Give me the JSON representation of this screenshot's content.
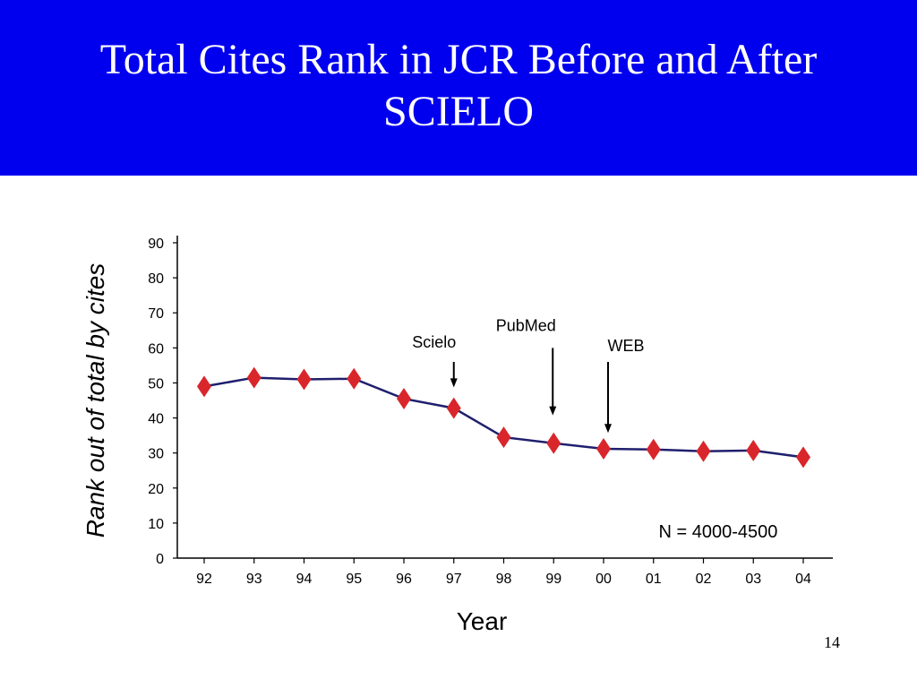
{
  "slide": {
    "title": "Total Cites Rank in JCR Before and After SCIELO",
    "page_number": "14"
  },
  "colors": {
    "banner": "#0000ee",
    "line": "#1f1f6e",
    "marker": "#d9262b"
  },
  "chart_data": {
    "type": "line",
    "title": "",
    "xlabel": "Year",
    "ylabel": "Rank out of total by cites",
    "ylim": [
      0,
      90
    ],
    "yticks": [
      0,
      10,
      20,
      30,
      40,
      50,
      60,
      70,
      80,
      90
    ],
    "grid": false,
    "categories": [
      "92",
      "93",
      "94",
      "95",
      "96",
      "97",
      "98",
      "99",
      "00",
      "01",
      "02",
      "03",
      "04"
    ],
    "series": [
      {
        "values": [
          49,
          51.5,
          51,
          51.2,
          45.5,
          42.8,
          34.5,
          32.8,
          31.2,
          31,
          30.5,
          30.7,
          28.8
        ]
      }
    ],
    "annotations": [
      {
        "text": "Scielo",
        "x": "97",
        "arrow_from": 56,
        "arrow_to": 49
      },
      {
        "text": "PubMed",
        "x": "99",
        "arrow_from": 60,
        "arrow_to": 41
      },
      {
        "text": "WEB",
        "x": "00",
        "arrow_from": 56,
        "arrow_to": 36
      }
    ],
    "note": "N = 4000-4500"
  }
}
